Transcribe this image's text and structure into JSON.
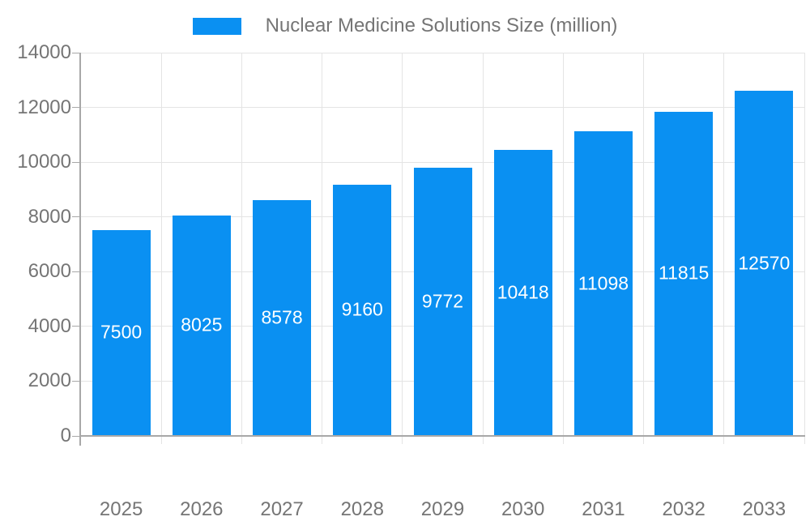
{
  "chart_data": {
    "type": "bar",
    "title": "Nuclear Medicine Solutions Size (million)",
    "legend_position": "top",
    "categories": [
      "2025",
      "2026",
      "2027",
      "2028",
      "2029",
      "2030",
      "2031",
      "2032",
      "2033"
    ],
    "series": [
      {
        "name": "Nuclear Medicine Solutions Size (million)",
        "values": [
          7500,
          8025,
          8578,
          9160,
          9772,
          10418,
          11098,
          11815,
          12570
        ]
      }
    ],
    "value_labels": [
      "7500",
      "8025",
      "8578",
      "9160",
      "9772",
      "10418",
      "11098",
      "11815",
      "12570"
    ],
    "xlabel": "",
    "ylabel": "",
    "ylim": [
      0,
      14000
    ],
    "yticks": [
      "0",
      "2000",
      "4000",
      "6000",
      "8000",
      "10000",
      "12000",
      "14000"
    ],
    "grid": true,
    "legend_swatch_icon": "bar-color-swatch"
  },
  "colors": {
    "bar": "#0a90f2",
    "value_label": "#ffffff",
    "axis_text": "#757575",
    "legend_text": "#757575",
    "axis_line": "#a8a8a8",
    "gridline": "#e4e4e4",
    "background": "#ffffff"
  }
}
